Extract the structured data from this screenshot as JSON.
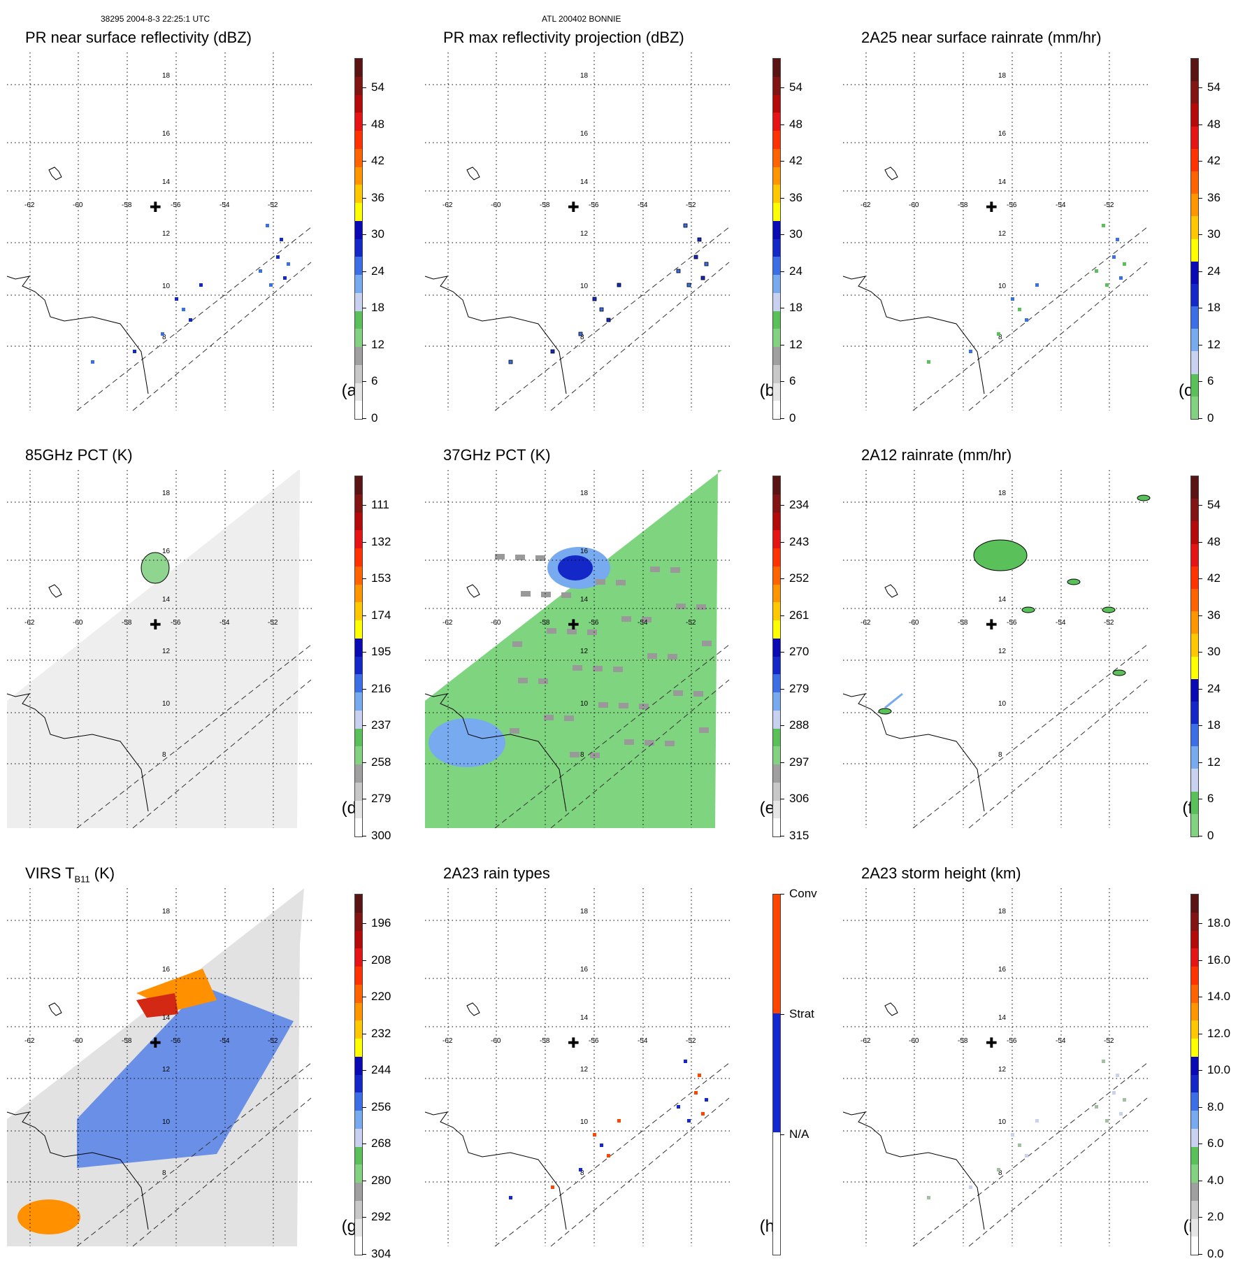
{
  "header": {
    "orbit_time": "38295 2004-8-3 22:25:1 UTC",
    "storm": "ATL 200402 BONNIE"
  },
  "lat_labels": [
    "18",
    "16",
    "14",
    "12",
    "10",
    "8"
  ],
  "lon_labels": [
    "-62",
    "-60",
    "-58",
    "-56",
    "-54",
    "-52"
  ],
  "center_marker": "✚",
  "colors": {
    "dbz": [
      "#ffffff",
      "#e6e6e6",
      "#c8c8c8",
      "#a0a0a0",
      "#82d282",
      "#5ac05a",
      "#c8d2f0",
      "#78aaf0",
      "#3c6ee6",
      "#1428c8",
      "#0a0ab4",
      "#ffff00",
      "#ffc800",
      "#ff9600",
      "#ff6400",
      "#ff3200",
      "#e61414",
      "#b40a0a",
      "#821414",
      "#5a1414"
    ],
    "pct": [
      "#5a1414",
      "#821414",
      "#b40a0a",
      "#e61414",
      "#ff3200",
      "#ff6400",
      "#ff9600",
      "#ffc800",
      "#ffff00",
      "#0a0ab4",
      "#1428c8",
      "#3c6ee6",
      "#78aaf0",
      "#c8d2f0",
      "#5ac05a",
      "#82d282",
      "#a0a0a0",
      "#c8c8c8",
      "#e6e6e6",
      "#ffffff"
    ],
    "rain": [
      "#82d282",
      "#5ac05a",
      "#c8d2f0",
      "#78aaf0",
      "#3c6ee6",
      "#1428c8",
      "#0a0ab4",
      "#ffff00",
      "#ffc800",
      "#ff9600",
      "#ff6400",
      "#ff3200",
      "#e61414",
      "#b40a0a",
      "#821414",
      "#5a1414"
    ],
    "rain_types": [
      "#ffffff",
      "#1428d2",
      "#ff4600"
    ]
  },
  "panels": [
    {
      "title": "PR near surface reflectivity (dBZ)",
      "label": "(a)",
      "ticks": [
        "54",
        "48",
        "42",
        "36",
        "30",
        "24",
        "18",
        "12",
        "6",
        "0"
      ],
      "scale": "dbz"
    },
    {
      "title": "PR max reflectivity projection (dBZ)",
      "label": "(b)",
      "ticks": [
        "54",
        "48",
        "42",
        "36",
        "30",
        "24",
        "18",
        "12",
        "6",
        "0"
      ],
      "scale": "dbz"
    },
    {
      "title": "2A25 near surface rainrate (mm/hr)",
      "label": "(c)",
      "ticks": [
        "54",
        "48",
        "42",
        "36",
        "30",
        "24",
        "18",
        "12",
        "6",
        "0"
      ],
      "scale": "rain"
    },
    {
      "title": "85GHz PCT (K)",
      "label": "(d)",
      "ticks": [
        "111",
        "132",
        "153",
        "174",
        "195",
        "216",
        "237",
        "258",
        "279",
        "300"
      ],
      "scale": "pct"
    },
    {
      "title": "37GHz PCT (K)",
      "label": "(e)",
      "ticks": [
        "234",
        "243",
        "252",
        "261",
        "270",
        "279",
        "288",
        "297",
        "306",
        "315"
      ],
      "scale": "pct"
    },
    {
      "title": "2A12 rainrate (mm/hr)",
      "label": "(f)",
      "ticks": [
        "54",
        "48",
        "42",
        "36",
        "30",
        "24",
        "18",
        "12",
        "6",
        "0"
      ],
      "scale": "rain"
    },
    {
      "title_main": "VIRS T",
      "title_sub": "B11",
      "title_tail": " (K)",
      "label": "(g)",
      "ticks": [
        "196",
        "208",
        "220",
        "232",
        "244",
        "256",
        "268",
        "280",
        "292",
        "304"
      ],
      "scale": "pct"
    },
    {
      "title": "2A23 rain types",
      "label": "(h)",
      "ticks": [
        "Conv",
        "Strat",
        "N/A"
      ],
      "scale": "rain_types"
    },
    {
      "title": "2A23 storm height (km)",
      "label": "(i)",
      "ticks": [
        "18.0",
        "16.0",
        "14.0",
        "12.0",
        "10.0",
        "8.0",
        "6.0",
        "4.0",
        "2.0",
        "0.0"
      ],
      "scale": "dbz"
    }
  ]
}
